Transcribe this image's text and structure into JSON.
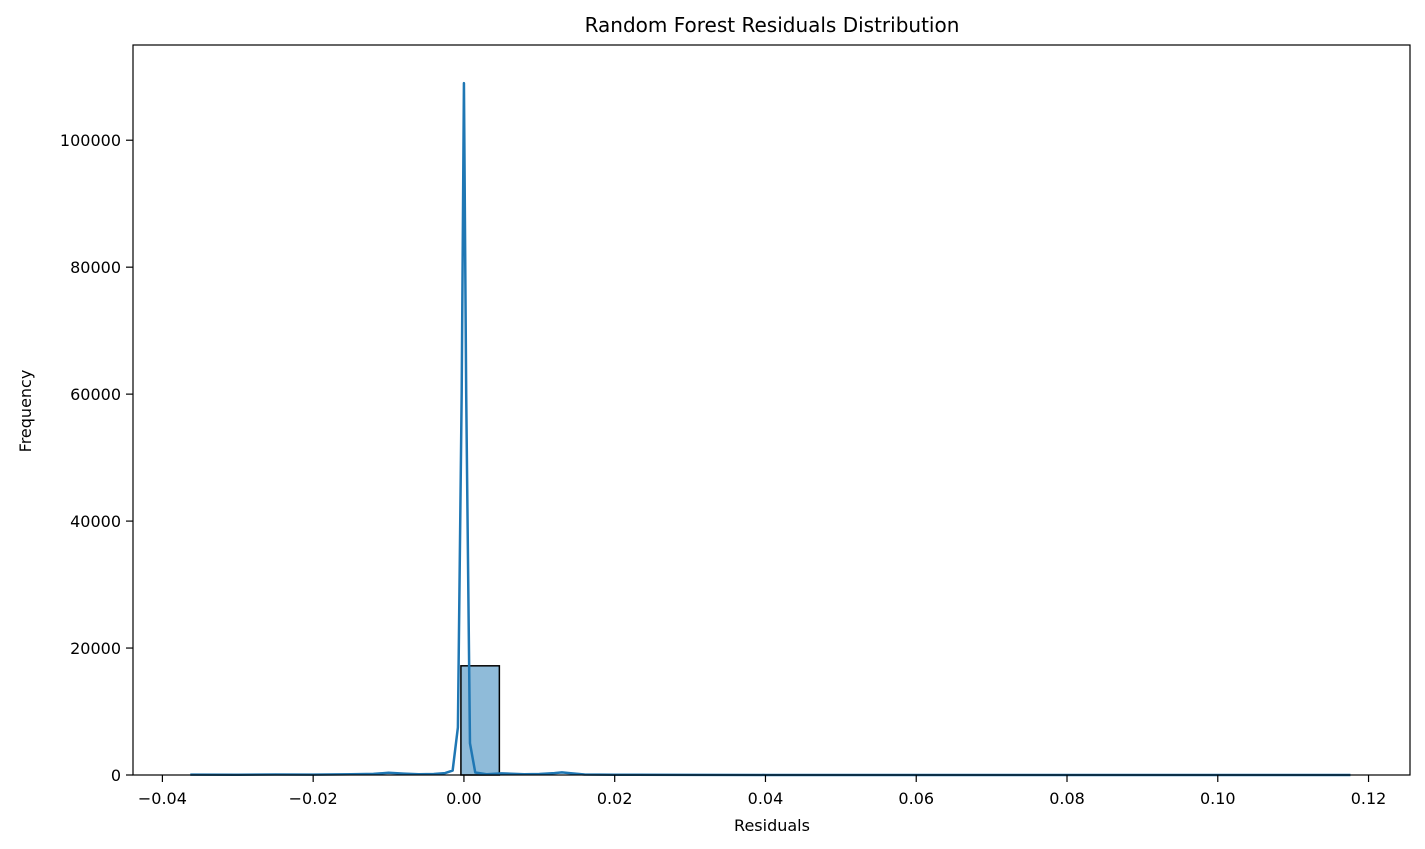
{
  "chart_data": {
    "type": "bar",
    "title": "Random Forest Residuals Distribution",
    "xlabel": "Residuals",
    "ylabel": "Frequency",
    "xlim": [
      -0.0439,
      0.1255
    ],
    "ylim": [
      0,
      115000
    ],
    "xticks": [
      -0.04,
      -0.02,
      0.0,
      0.02,
      0.04,
      0.06,
      0.08,
      0.1,
      0.12
    ],
    "xtick_labels": [
      "−0.04",
      "−0.02",
      "0.00",
      "0.02",
      "0.04",
      "0.06",
      "0.08",
      "0.10",
      "0.12"
    ],
    "yticks": [
      0,
      20000,
      40000,
      60000,
      80000,
      100000
    ],
    "ytick_labels": [
      "0",
      "20000",
      "40000",
      "60000",
      "80000",
      "100000"
    ],
    "grid": false,
    "histogram": {
      "bin_width": 0.00513,
      "bins": [
        {
          "x0": -0.0363,
          "x1": -0.0312,
          "count": 0
        },
        {
          "x0": -0.0312,
          "x1": -0.0261,
          "count": 0
        },
        {
          "x0": -0.0261,
          "x1": -0.0209,
          "count": 0
        },
        {
          "x0": -0.0209,
          "x1": -0.0158,
          "count": 0
        },
        {
          "x0": -0.0158,
          "x1": -0.0107,
          "count": 0
        },
        {
          "x0": -0.0107,
          "x1": -0.0055,
          "count": 0
        },
        {
          "x0": -0.0055,
          "x1": -0.0004,
          "count": 0
        },
        {
          "x0": -0.0004,
          "x1": 0.0047,
          "count": 17200
        },
        {
          "x0": 0.0047,
          "x1": 0.0098,
          "count": 0
        },
        {
          "x0": 0.0098,
          "x1": 0.015,
          "count": 0
        },
        {
          "x0": 0.015,
          "x1": 0.0201,
          "count": 0
        },
        {
          "x0": 0.0201,
          "x1": 0.0252,
          "count": 0
        },
        {
          "x0": 0.0252,
          "x1": 0.0304,
          "count": 0
        },
        {
          "x0": 0.0304,
          "x1": 0.0355,
          "count": 0
        },
        {
          "x0": 0.0355,
          "x1": 0.0406,
          "count": 0
        },
        {
          "x0": 0.0406,
          "x1": 0.0457,
          "count": 0
        },
        {
          "x0": 0.0457,
          "x1": 0.0509,
          "count": 0
        },
        {
          "x0": 0.0509,
          "x1": 0.056,
          "count": 0
        },
        {
          "x0": 0.056,
          "x1": 0.0611,
          "count": 0
        },
        {
          "x0": 0.0611,
          "x1": 0.0663,
          "count": 0
        },
        {
          "x0": 0.0663,
          "x1": 0.0714,
          "count": 0
        },
        {
          "x0": 0.0714,
          "x1": 0.0765,
          "count": 0
        },
        {
          "x0": 0.0765,
          "x1": 0.0817,
          "count": 0
        },
        {
          "x0": 0.0817,
          "x1": 0.0868,
          "count": 0
        },
        {
          "x0": 0.0868,
          "x1": 0.0919,
          "count": 0
        },
        {
          "x0": 0.0919,
          "x1": 0.097,
          "count": 0
        },
        {
          "x0": 0.097,
          "x1": 0.1022,
          "count": 0
        },
        {
          "x0": 0.1022,
          "x1": 0.1073,
          "count": 0
        },
        {
          "x0": 0.1073,
          "x1": 0.1124,
          "count": 0
        },
        {
          "x0": 0.1124,
          "x1": 0.1176,
          "count": 0
        }
      ]
    },
    "kde": {
      "x": [
        -0.0363,
        -0.03,
        -0.025,
        -0.02,
        -0.015,
        -0.012,
        -0.01,
        -0.008,
        -0.006,
        -0.004,
        -0.0025,
        -0.0015,
        -0.0008,
        -0.0003,
        0.0,
        0.0003,
        0.0008,
        0.0015,
        0.003,
        0.005,
        0.008,
        0.01,
        0.012,
        0.013,
        0.014,
        0.016,
        0.02,
        0.03,
        0.04,
        0.06,
        0.08,
        0.1,
        0.1176
      ],
      "y": [
        50,
        40,
        80,
        60,
        120,
        180,
        350,
        220,
        120,
        150,
        300,
        700,
        7500,
        60000,
        109000,
        60000,
        5000,
        400,
        120,
        250,
        120,
        150,
        300,
        420,
        300,
        80,
        40,
        20,
        10,
        10,
        10,
        10,
        10
      ]
    },
    "colors": {
      "bar_fill": "#1f77b4",
      "bar_fill_opacity": 0.5,
      "bar_edge": "#000000",
      "kde_line": "#1f77b4"
    }
  }
}
